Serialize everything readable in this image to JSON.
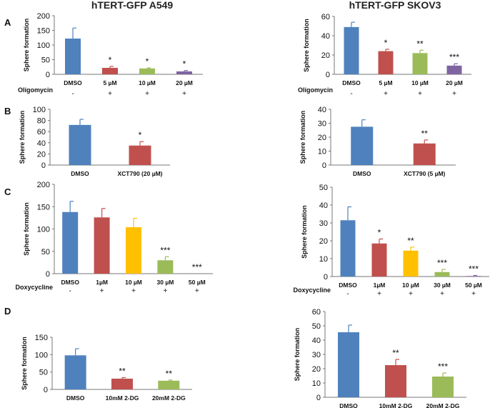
{
  "column_titles": [
    "hTERT-GFP A549",
    "hTERT-GFP SKOV3"
  ],
  "panel_labels": [
    "A",
    "B",
    "C",
    "D"
  ],
  "colors": {
    "blue": "#4f81bd",
    "red": "#c0504d",
    "green": "#9bbb59",
    "purple": "#8064a2",
    "orange": "#ffc000"
  },
  "chart_data": [
    {
      "id": "A-left",
      "type": "bar",
      "title": "",
      "xlabel": "",
      "ylabel": "Sphere formation",
      "ylim": [
        0,
        200
      ],
      "yticks": [
        0,
        50,
        100,
        150,
        200
      ],
      "categories": [
        "DMSO",
        "5 µM",
        "10 µM",
        "20 µM"
      ],
      "values": [
        122,
        22,
        20,
        10
      ],
      "errors": [
        36,
        5,
        2,
        3
      ],
      "colors": [
        "blue",
        "red",
        "green",
        "purple"
      ],
      "significance": [
        "",
        "*",
        "*",
        "*"
      ],
      "treatment": {
        "label": "Oligomycin",
        "signs": [
          "-",
          "+",
          "+",
          "+"
        ]
      }
    },
    {
      "id": "A-right",
      "type": "bar",
      "title": "",
      "xlabel": "",
      "ylabel": "Sphere formation",
      "ylim": [
        0,
        60
      ],
      "yticks": [
        0,
        20,
        40,
        60
      ],
      "categories": [
        "DMSO",
        "5 µM",
        "10 µM",
        "20 µM"
      ],
      "values": [
        49,
        24,
        22,
        9
      ],
      "errors": [
        5,
        2,
        3,
        2
      ],
      "colors": [
        "blue",
        "red",
        "green",
        "purple"
      ],
      "significance": [
        "",
        "*",
        "**",
        "***"
      ],
      "treatment": {
        "label": "Oligomycin",
        "signs": [
          "-",
          "+",
          "+",
          "+"
        ]
      }
    },
    {
      "id": "B-left",
      "type": "bar",
      "title": "",
      "xlabel": "",
      "ylabel": "Sphere formation",
      "ylim": [
        0,
        100
      ],
      "yticks": [
        0,
        20,
        40,
        60,
        80,
        100
      ],
      "categories": [
        "DMSO",
        "XCT790 (20 µM)"
      ],
      "values": [
        72,
        35
      ],
      "errors": [
        10,
        7
      ],
      "colors": [
        "blue",
        "red"
      ],
      "significance": [
        "",
        "*"
      ]
    },
    {
      "id": "B-right",
      "type": "bar",
      "title": "",
      "xlabel": "",
      "ylabel": "Sphere formation",
      "ylim": [
        0,
        40
      ],
      "yticks": [
        0,
        10,
        20,
        30,
        40
      ],
      "categories": [
        "DMSO",
        "XCT790 (5 µM)"
      ],
      "values": [
        27.5,
        15.5
      ],
      "errors": [
        5,
        2.5
      ],
      "colors": [
        "blue",
        "red"
      ],
      "significance": [
        "",
        "**"
      ]
    },
    {
      "id": "C-left",
      "type": "bar",
      "title": "",
      "xlabel": "",
      "ylabel": "Sphere formation",
      "ylim": [
        0,
        200
      ],
      "yticks": [
        0,
        50,
        100,
        150,
        200
      ],
      "categories": [
        "DMSO",
        "1µM",
        "10 µM",
        "30 µM",
        "50 µM"
      ],
      "values": [
        138,
        126,
        104,
        30,
        0
      ],
      "errors": [
        24,
        20,
        20,
        8,
        0
      ],
      "colors": [
        "blue",
        "red",
        "orange",
        "green",
        "purple"
      ],
      "significance": [
        "",
        "",
        "",
        "***",
        "***"
      ],
      "treatment": {
        "label": "Doxycycline",
        "signs": [
          "-",
          "+",
          "+",
          "+",
          "+"
        ]
      }
    },
    {
      "id": "C-right",
      "type": "bar",
      "title": "",
      "xlabel": "",
      "ylabel": "Sphere formation",
      "ylim": [
        0,
        50
      ],
      "yticks": [
        0,
        10,
        20,
        30,
        40,
        50
      ],
      "categories": [
        "DMSO",
        "1µM",
        "10 µM",
        "30 µM",
        "50 µM"
      ],
      "values": [
        31.5,
        18.5,
        14.5,
        2.5,
        0.3
      ],
      "errors": [
        7.5,
        2.5,
        2,
        1.5,
        0.3
      ],
      "colors": [
        "blue",
        "red",
        "orange",
        "green",
        "purple"
      ],
      "significance": [
        "",
        "*",
        "**",
        "***",
        "***"
      ],
      "treatment": {
        "label": "Doxycycline",
        "signs": [
          "-",
          "+",
          "+",
          "+",
          "+"
        ]
      }
    },
    {
      "id": "D-left",
      "type": "bar",
      "title": "",
      "xlabel": "",
      "ylabel": "Sphere formation",
      "ylim": [
        0,
        150
      ],
      "yticks": [
        0,
        50,
        100,
        150
      ],
      "categories": [
        "DMSO",
        "10mM 2-DG",
        "20mM 2-DG"
      ],
      "values": [
        98,
        31,
        25
      ],
      "errors": [
        19,
        3,
        2
      ],
      "colors": [
        "blue",
        "red",
        "green"
      ],
      "significance": [
        "",
        "**",
        "**"
      ]
    },
    {
      "id": "D-right",
      "type": "bar",
      "title": "",
      "xlabel": "",
      "ylabel": "Sphere formation",
      "ylim": [
        0,
        60
      ],
      "yticks": [
        0,
        10,
        20,
        30,
        40,
        50,
        60
      ],
      "categories": [
        "DMSO",
        "10mM 2-DG",
        "20mM 2-DG"
      ],
      "values": [
        45.5,
        22.5,
        14.5
      ],
      "errors": [
        5,
        4,
        2.5
      ],
      "colors": [
        "blue",
        "red",
        "green"
      ],
      "significance": [
        "",
        "**",
        "***"
      ]
    }
  ]
}
